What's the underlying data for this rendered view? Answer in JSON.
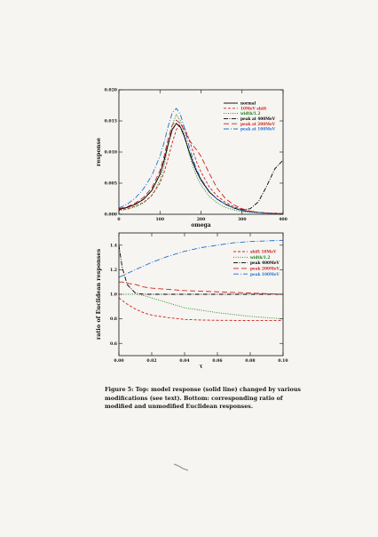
{
  "caption": "Figure 5: Top: model response (solid line) changed by various modifications (see text). Bottom: corresponding ratio of modified and unmodified Euclidean responses.",
  "chart_data": [
    {
      "type": "line",
      "title": "",
      "xlabel": "omega",
      "ylabel": "response",
      "xlim": [
        0,
        400
      ],
      "ylim": [
        0,
        0.02
      ],
      "x_ticks": [
        0,
        100,
        200,
        300,
        400
      ],
      "x_tick_labels": [
        "0",
        "100",
        "200",
        "300",
        "400"
      ],
      "y_ticks": [
        0,
        0.005,
        0.01,
        0.015,
        0.02
      ],
      "y_tick_labels": [
        "0.000",
        "0.005",
        "0.010",
        "0.015",
        "0.020"
      ],
      "grid": false,
      "legend": "top-right",
      "x": [
        0,
        20,
        40,
        60,
        80,
        100,
        110,
        120,
        130,
        140,
        150,
        160,
        170,
        180,
        190,
        200,
        220,
        240,
        260,
        280,
        300,
        320,
        340,
        360,
        380,
        400
      ],
      "series": [
        {
          "name": "normal",
          "color": "#000000",
          "dash": "",
          "values": [
            0.0008,
            0.0011,
            0.0016,
            0.0024,
            0.0038,
            0.0064,
            0.0086,
            0.0113,
            0.0136,
            0.0146,
            0.014,
            0.0124,
            0.0103,
            0.0084,
            0.0068,
            0.0055,
            0.0036,
            0.0024,
            0.0016,
            0.001,
            0.0006,
            0.0004,
            0.0003,
            0.0002,
            0.0001,
            0.0001
          ]
        },
        {
          "name": "10MeV shift",
          "color": "#cc2222",
          "dash": "3,2",
          "values": [
            0.0007,
            0.0009,
            0.0013,
            0.0019,
            0.003,
            0.005,
            0.0067,
            0.009,
            0.0115,
            0.0136,
            0.0145,
            0.0139,
            0.0122,
            0.0102,
            0.0083,
            0.0068,
            0.0044,
            0.0029,
            0.0019,
            0.0012,
            0.0008,
            0.0005,
            0.0003,
            0.0002,
            0.0002,
            0.0001
          ]
        },
        {
          "name": "width/1.2",
          "color": "#1e7a1e",
          "dash": "1,1.5",
          "values": [
            0.0006,
            0.0008,
            0.0012,
            0.0018,
            0.003,
            0.0054,
            0.0078,
            0.011,
            0.0144,
            0.016,
            0.015,
            0.0127,
            0.01,
            0.0078,
            0.006,
            0.0047,
            0.0029,
            0.0018,
            0.0011,
            0.0007,
            0.0004,
            0.0003,
            0.0002,
            0.0001,
            0.0001,
            0.0001
          ]
        },
        {
          "name": "peak at 400MeV",
          "color": "#000000",
          "dash": "5,1.5,1,1.5",
          "values": [
            0.0008,
            0.0011,
            0.0016,
            0.0024,
            0.0038,
            0.0064,
            0.0086,
            0.0113,
            0.0136,
            0.0146,
            0.014,
            0.0124,
            0.0103,
            0.0084,
            0.0068,
            0.0055,
            0.0036,
            0.0024,
            0.0016,
            0.001,
            0.0007,
            0.0009,
            0.002,
            0.0045,
            0.0073,
            0.0087
          ]
        },
        {
          "name": "peak at 200MeV",
          "color": "#cc2222",
          "dash": "6,3",
          "values": [
            0.0009,
            0.0012,
            0.0018,
            0.0027,
            0.0042,
            0.007,
            0.0093,
            0.0121,
            0.0143,
            0.0151,
            0.0146,
            0.0134,
            0.0121,
            0.0111,
            0.0103,
            0.0093,
            0.0066,
            0.0041,
            0.0025,
            0.0015,
            0.0009,
            0.0005,
            0.0003,
            0.0002,
            0.0001,
            0.0001
          ]
        },
        {
          "name": "peak at 100MeV",
          "color": "#1f6fd0",
          "dash": "6,2,1,2",
          "values": [
            0.001,
            0.0016,
            0.0026,
            0.0041,
            0.0062,
            0.0093,
            0.0115,
            0.0141,
            0.0163,
            0.017,
            0.016,
            0.0138,
            0.0112,
            0.0089,
            0.0071,
            0.0057,
            0.0037,
            0.0024,
            0.0016,
            0.001,
            0.0006,
            0.0004,
            0.0003,
            0.0002,
            0.0001,
            0.0001
          ]
        }
      ]
    },
    {
      "type": "line",
      "title": "",
      "xlabel": "τ",
      "ylabel": "ratio of Euclidean responses",
      "xlim": [
        0,
        0.1
      ],
      "ylim": [
        0.5,
        1.5
      ],
      "x_ticks": [
        0,
        0.02,
        0.04,
        0.06,
        0.08,
        0.1
      ],
      "x_tick_labels": [
        "0.00",
        "0.02",
        "0.04",
        "0.06",
        "0.08",
        "0.10"
      ],
      "y_ticks": [
        0.6,
        0.8,
        1.0,
        1.2,
        1.4
      ],
      "y_tick_labels": [
        "0.6",
        "0.8",
        "1.0",
        "1.2",
        "1.4"
      ],
      "grid": false,
      "legend": "top-right",
      "x": [
        0,
        0.002,
        0.005,
        0.01,
        0.015,
        0.02,
        0.03,
        0.04,
        0.05,
        0.06,
        0.07,
        0.08,
        0.09,
        0.1
      ],
      "series": [
        {
          "name": "shift 10MeV",
          "color": "#cc2222",
          "dash": "3,2",
          "values": [
            0.97,
            0.95,
            0.92,
            0.88,
            0.85,
            0.83,
            0.81,
            0.795,
            0.79,
            0.788,
            0.787,
            0.786,
            0.786,
            0.786
          ]
        },
        {
          "name": "width/1.2",
          "color": "#1e7a1e",
          "dash": "1,1.5",
          "values": [
            1.0,
            1.0,
            1.0,
            1.0,
            0.99,
            0.97,
            0.93,
            0.89,
            0.87,
            0.85,
            0.835,
            0.82,
            0.81,
            0.8
          ]
        },
        {
          "name": "peak 400MeV",
          "color": "#000000",
          "dash": "5,1.5,1,1.5",
          "values": [
            1.4,
            1.22,
            1.08,
            1.01,
            1.0,
            1.0,
            1.0,
            1.0,
            1.0,
            1.0,
            1.0,
            1.0,
            1.0,
            1.0
          ]
        },
        {
          "name": "peak 200MeV",
          "color": "#cc2222",
          "dash": "6,3",
          "values": [
            1.1,
            1.1,
            1.09,
            1.08,
            1.06,
            1.05,
            1.04,
            1.03,
            1.025,
            1.02,
            1.015,
            1.01,
            1.005,
            1.0
          ]
        },
        {
          "name": "peak 100MeV",
          "color": "#1f6fd0",
          "dash": "6,2,1,2",
          "values": [
            1.14,
            1.15,
            1.17,
            1.2,
            1.23,
            1.26,
            1.31,
            1.35,
            1.38,
            1.4,
            1.42,
            1.43,
            1.435,
            1.44
          ]
        }
      ]
    }
  ]
}
